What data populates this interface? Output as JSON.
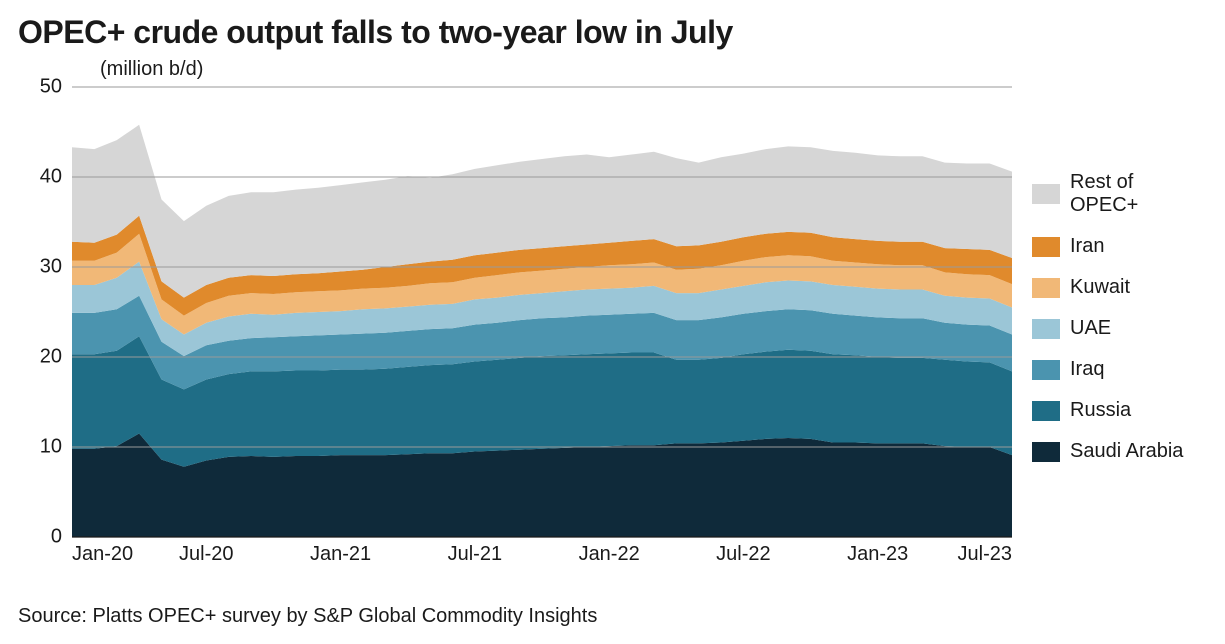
{
  "title": "OPEC+ crude output falls to two-year low in July",
  "unit_label": "(million b/d)",
  "source": "Source: Platts OPEC+ survey by S&P Global Commodity Insights",
  "chart": {
    "type": "area-stacked",
    "background_color": "#ffffff",
    "title_fontsize": 32,
    "label_fontsize": 20,
    "tick_fontsize": 20,
    "grid_color": "#9a9a9a",
    "axis_color": "#1a1a1a",
    "ylim": [
      0,
      50
    ],
    "ytick_step": 10,
    "yticks": [
      0,
      10,
      20,
      30,
      40,
      50
    ],
    "x_labels": [
      "Jan-20",
      "Jul-20",
      "Jan-21",
      "Jul-21",
      "Jan-22",
      "Jul-22",
      "Jan-23",
      "Jul-23"
    ],
    "x_points": [
      "Jan-20",
      "Feb-20",
      "Mar-20",
      "Apr-20",
      "May-20",
      "Jun-20",
      "Jul-20",
      "Aug-20",
      "Sep-20",
      "Oct-20",
      "Nov-20",
      "Dec-20",
      "Jan-21",
      "Feb-21",
      "Mar-21",
      "Apr-21",
      "May-21",
      "Jun-21",
      "Jul-21",
      "Aug-21",
      "Sep-21",
      "Oct-21",
      "Nov-21",
      "Dec-21",
      "Jan-22",
      "Feb-22",
      "Mar-22",
      "Apr-22",
      "May-22",
      "Jun-22",
      "Jul-22",
      "Aug-22",
      "Sep-22",
      "Oct-22",
      "Nov-22",
      "Dec-22",
      "Jan-23",
      "Feb-23",
      "Mar-23",
      "Apr-23",
      "May-23",
      "Jun-23",
      "Jul-23"
    ],
    "series": [
      {
        "name": "Saudi Arabia",
        "color": "#0f2a3a",
        "values": [
          9.8,
          9.8,
          10.1,
          11.5,
          8.6,
          7.8,
          8.5,
          8.9,
          9.0,
          8.9,
          9.0,
          9.0,
          9.1,
          9.1,
          9.1,
          9.2,
          9.3,
          9.3,
          9.5,
          9.6,
          9.7,
          9.8,
          9.9,
          10.0,
          10.1,
          10.2,
          10.2,
          10.4,
          10.4,
          10.5,
          10.7,
          10.9,
          11.0,
          10.9,
          10.5,
          10.5,
          10.4,
          10.4,
          10.4,
          10.1,
          10.0,
          10.0,
          9.1
        ]
      },
      {
        "name": "Russia",
        "color": "#1f6d86",
        "values": [
          10.5,
          10.5,
          10.6,
          10.8,
          8.9,
          8.6,
          9.0,
          9.2,
          9.4,
          9.5,
          9.5,
          9.5,
          9.5,
          9.5,
          9.6,
          9.7,
          9.8,
          9.9,
          10.0,
          10.1,
          10.2,
          10.3,
          10.3,
          10.3,
          10.3,
          10.3,
          10.3,
          9.3,
          9.3,
          9.4,
          9.6,
          9.7,
          9.8,
          9.8,
          9.8,
          9.7,
          9.6,
          9.5,
          9.5,
          9.6,
          9.5,
          9.4,
          9.3
        ]
      },
      {
        "name": "Iraq",
        "color": "#4b94af",
        "values": [
          4.6,
          4.6,
          4.6,
          4.5,
          4.2,
          3.7,
          3.8,
          3.7,
          3.7,
          3.8,
          3.8,
          3.9,
          3.9,
          4.0,
          4.0,
          4.0,
          4.0,
          4.0,
          4.1,
          4.1,
          4.2,
          4.2,
          4.2,
          4.3,
          4.3,
          4.3,
          4.4,
          4.4,
          4.4,
          4.5,
          4.5,
          4.5,
          4.5,
          4.5,
          4.5,
          4.4,
          4.4,
          4.4,
          4.4,
          4.1,
          4.1,
          4.1,
          4.1
        ]
      },
      {
        "name": "UAE",
        "color": "#9bc6d7",
        "values": [
          3.1,
          3.1,
          3.5,
          3.8,
          2.5,
          2.4,
          2.5,
          2.7,
          2.7,
          2.5,
          2.6,
          2.6,
          2.6,
          2.7,
          2.7,
          2.7,
          2.7,
          2.7,
          2.8,
          2.8,
          2.8,
          2.8,
          2.9,
          2.9,
          2.9,
          2.9,
          3.0,
          3.0,
          3.0,
          3.1,
          3.1,
          3.2,
          3.2,
          3.2,
          3.2,
          3.2,
          3.2,
          3.2,
          3.2,
          3.0,
          3.0,
          3.0,
          3.0
        ]
      },
      {
        "name": "Kuwait",
        "color": "#f1b877",
        "values": [
          2.7,
          2.7,
          2.8,
          3.1,
          2.2,
          2.1,
          2.2,
          2.3,
          2.3,
          2.3,
          2.3,
          2.3,
          2.3,
          2.3,
          2.3,
          2.3,
          2.4,
          2.4,
          2.4,
          2.5,
          2.5,
          2.5,
          2.5,
          2.5,
          2.6,
          2.6,
          2.6,
          2.6,
          2.7,
          2.7,
          2.8,
          2.8,
          2.8,
          2.8,
          2.7,
          2.7,
          2.7,
          2.7,
          2.7,
          2.6,
          2.6,
          2.6,
          2.6
        ]
      },
      {
        "name": "Iran",
        "color": "#e08a2c",
        "values": [
          2.1,
          2.0,
          2.0,
          2.0,
          2.0,
          2.0,
          2.0,
          2.0,
          2.0,
          2.0,
          2.0,
          2.0,
          2.1,
          2.1,
          2.3,
          2.4,
          2.4,
          2.5,
          2.5,
          2.5,
          2.5,
          2.5,
          2.5,
          2.5,
          2.5,
          2.6,
          2.6,
          2.6,
          2.6,
          2.6,
          2.6,
          2.6,
          2.6,
          2.6,
          2.6,
          2.6,
          2.6,
          2.6,
          2.6,
          2.7,
          2.8,
          2.8,
          2.9
        ]
      },
      {
        "name": "Rest of OPEC+",
        "color": "#d6d6d6",
        "values": [
          10.5,
          10.4,
          10.5,
          10.1,
          9.1,
          8.5,
          8.8,
          9.1,
          9.2,
          9.3,
          9.4,
          9.5,
          9.6,
          9.7,
          9.7,
          9.8,
          9.3,
          9.5,
          9.6,
          9.7,
          9.8,
          9.9,
          10.0,
          10.0,
          9.5,
          9.6,
          9.7,
          9.8,
          9.2,
          9.4,
          9.3,
          9.4,
          9.5,
          9.5,
          9.6,
          9.6,
          9.5,
          9.5,
          9.5,
          9.5,
          9.5,
          9.6,
          9.6
        ]
      }
    ],
    "legend_order": [
      "Rest of OPEC+",
      "Iran",
      "Kuwait",
      "UAE",
      "Iraq",
      "Russia",
      "Saudi Arabia"
    ]
  }
}
